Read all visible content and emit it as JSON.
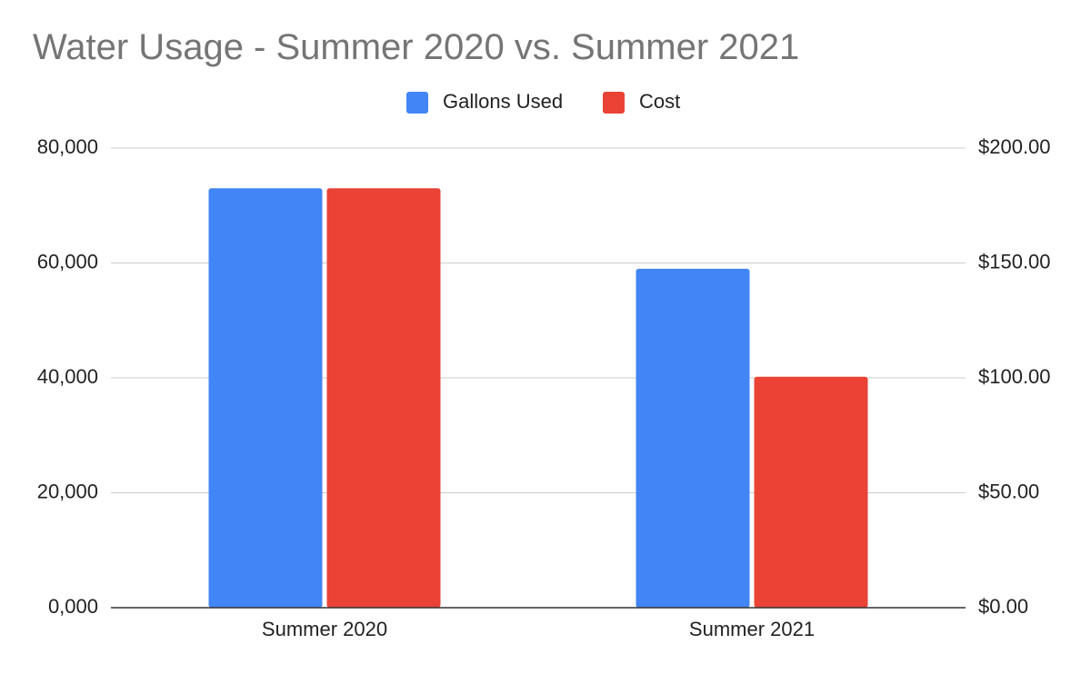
{
  "chart_data": {
    "type": "bar",
    "title": "Water Usage - Summer 2020 vs. Summer 2021",
    "categories": [
      "Summer 2020",
      "Summer 2021"
    ],
    "series": [
      {
        "name": "Gallons Used",
        "values": [
          73000,
          59000
        ],
        "axis": "left",
        "color": "#4285f4"
      },
      {
        "name": "Cost",
        "values": [
          182.5,
          100.5
        ],
        "axis": "right",
        "color": "#ea4335"
      }
    ],
    "y_left": {
      "range": [
        0,
        80000
      ],
      "ticks": [
        0,
        20000,
        40000,
        60000,
        80000
      ],
      "tick_labels": [
        "0,000",
        "20,000",
        "40,000",
        "60,000",
        "80,000"
      ]
    },
    "y_right": {
      "range": [
        0,
        200
      ],
      "ticks": [
        0,
        50,
        100,
        150,
        200
      ],
      "tick_labels": [
        "$0.00",
        "$50.00",
        "$100.00",
        "$150.00",
        "$200.00"
      ]
    },
    "grid": true,
    "legend_position": "top"
  }
}
